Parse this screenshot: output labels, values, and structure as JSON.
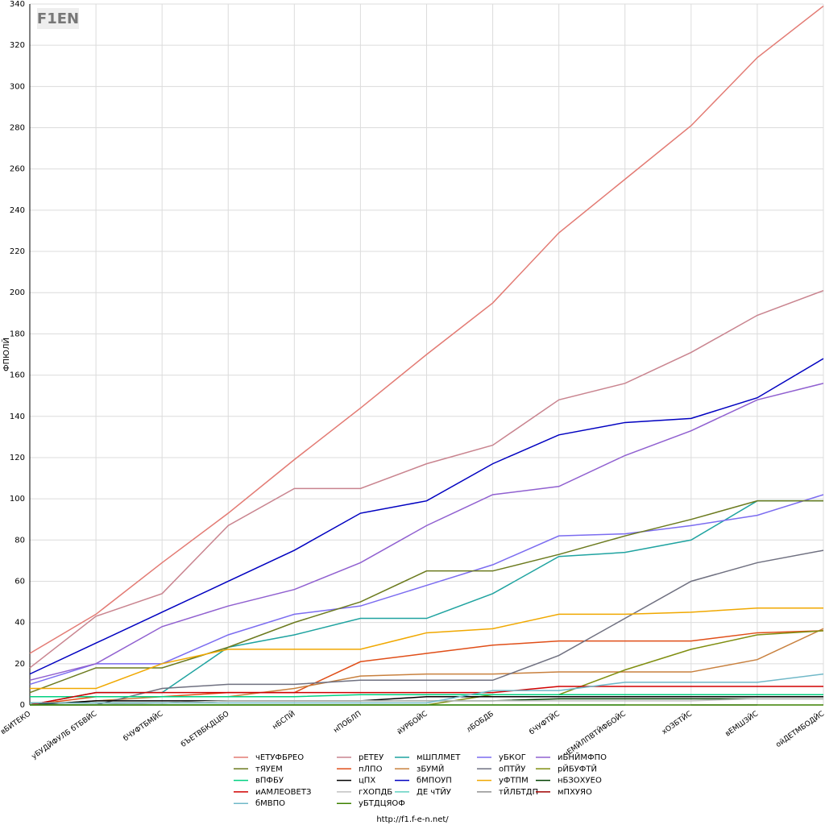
{
  "chart_data": {
    "type": "line",
    "logo": "F1EN",
    "y_label": "ФПЮЛЙ",
    "source": "http://f1.f-e-n.net/",
    "categories": [
      "вБИТЕКО",
      "уБУДЙФУЛБ бТБВЙС",
      "бЧУФТБМЙС",
      "бЪЕТВБКДЦБО",
      "нБСПЙ",
      "нПОБЛП",
      "йУРБОЙС",
      "лБОБДБ",
      "бЧУФТЙС",
      "чЕМЙЛПВТЙФБОЙС",
      "хОЗБТЙС",
      "вЕМШЗЙС",
      "ойДЕТМБОДЙС"
    ],
    "ylim": [
      0,
      340
    ],
    "yticks": [
      0,
      20,
      40,
      60,
      80,
      100,
      120,
      140,
      160,
      180,
      200,
      220,
      240,
      260,
      280,
      300,
      320,
      340
    ],
    "grid": true,
    "series": [
      {
        "name": "чЕТУФБРЕО",
        "color": "#e37b74",
        "values": [
          25,
          44,
          69,
          93,
          119,
          144,
          170,
          195,
          229,
          255,
          281,
          314,
          339
        ]
      },
      {
        "name": "рЕТЕУ",
        "color": "#c9848f",
        "values": [
          18,
          43,
          54,
          87,
          105,
          105,
          117,
          126,
          148,
          156,
          171,
          189,
          201
        ]
      },
      {
        "name": "мШПЛМЕТ",
        "color": "#1fa3a0",
        "values": [
          0,
          6,
          6,
          28,
          34,
          42,
          42,
          54,
          72,
          74,
          80,
          99,
          99
        ]
      },
      {
        "name": "уБКОГ",
        "color": "#7b6cf0",
        "values": [
          10,
          20,
          20,
          34,
          44,
          48,
          58,
          68,
          82,
          83,
          87,
          92,
          102
        ]
      },
      {
        "name": "иБНЙМФПО",
        "color": "#9060d0",
        "values": [
          12,
          20,
          38,
          48,
          56,
          69,
          87,
          102,
          106,
          121,
          133,
          148,
          156
        ]
      },
      {
        "name": "тЯУЕМ",
        "color": "#6b7a1e",
        "values": [
          6,
          18,
          18,
          28,
          40,
          50,
          65,
          65,
          73,
          82,
          90,
          99,
          99
        ]
      },
      {
        "name": "пЛПО",
        "color": "#e04e18",
        "values": [
          0,
          4,
          4,
          6,
          6,
          21,
          25,
          29,
          31,
          31,
          31,
          35,
          36
        ]
      },
      {
        "name": "зБУМЙ",
        "color": "#c8803e",
        "values": [
          0,
          2,
          4,
          4,
          8,
          14,
          15,
          15,
          16,
          16,
          16,
          22,
          37
        ]
      },
      {
        "name": "оПТЙУ",
        "color": "#6f7080",
        "values": [
          0,
          0,
          8,
          10,
          10,
          12,
          12,
          12,
          24,
          42,
          60,
          69,
          75
        ]
      },
      {
        "name": "рЙБУФТЙ",
        "color": "#7f8e10",
        "values": [
          0,
          0,
          0,
          0,
          0,
          0,
          0,
          5,
          5,
          17,
          27,
          34,
          36
        ]
      },
      {
        "name": "вПФБУ",
        "color": "#00d080",
        "values": [
          4,
          4,
          4,
          4,
          4,
          5,
          5,
          5,
          5,
          5,
          5,
          5,
          5
        ]
      },
      {
        "name": "цПХ",
        "color": "#000000",
        "values": [
          0,
          2,
          2,
          2,
          2,
          2,
          4,
          4,
          4,
          4,
          4,
          4,
          4
        ]
      },
      {
        "name": "бМПОУП",
        "color": "#0000c0",
        "values": [
          15,
          30,
          45,
          60,
          75,
          93,
          99,
          117,
          131,
          137,
          139,
          149,
          168
        ]
      },
      {
        "name": "уФТПМ",
        "color": "#f0a800",
        "values": [
          8,
          8,
          20,
          27,
          27,
          27,
          35,
          37,
          44,
          44,
          45,
          47,
          47
        ]
      },
      {
        "name": "нБЗОХУЕО",
        "color": "#004000",
        "values": [
          1,
          1,
          1,
          2,
          2,
          2,
          2,
          2,
          3,
          3,
          3,
          3,
          3
        ]
      },
      {
        "name": "иАМЛЕОВЕТЗ",
        "color": "#d00000",
        "values": [
          0,
          6,
          6,
          6,
          6,
          6,
          6,
          6,
          9,
          9,
          9,
          9,
          9
        ]
      },
      {
        "name": "гХОПДБ",
        "color": "#c0c0c0",
        "values": [
          0,
          0,
          1,
          2,
          2,
          2,
          2,
          2,
          2,
          2,
          2,
          3,
          3
        ]
      },
      {
        "name": "ДЕ чТЙУ",
        "color": "#60d0c0",
        "values": [
          0,
          0,
          0,
          0,
          0,
          0,
          0,
          0,
          0,
          0,
          null,
          null,
          null
        ]
      },
      {
        "name": "тЙЛБТДП",
        "color": "#909090",
        "values": [
          null,
          null,
          null,
          null,
          null,
          null,
          null,
          null,
          null,
          null,
          0,
          0,
          null
        ]
      },
      {
        "name": "мПХУЯО",
        "color": "#a00000",
        "values": [
          null,
          null,
          null,
          null,
          null,
          null,
          null,
          null,
          null,
          null,
          null,
          null,
          0
        ]
      },
      {
        "name": "бМВПО",
        "color": "#70b8c8",
        "values": [
          1,
          1,
          1,
          1,
          1,
          1,
          1,
          7,
          7,
          11,
          11,
          11,
          15
        ]
      },
      {
        "name": "уБТДЦЯОФ",
        "color": "#3c8000",
        "values": [
          0,
          0,
          0,
          0,
          0,
          0,
          0,
          0,
          0,
          0,
          0,
          0,
          0
        ]
      }
    ]
  }
}
